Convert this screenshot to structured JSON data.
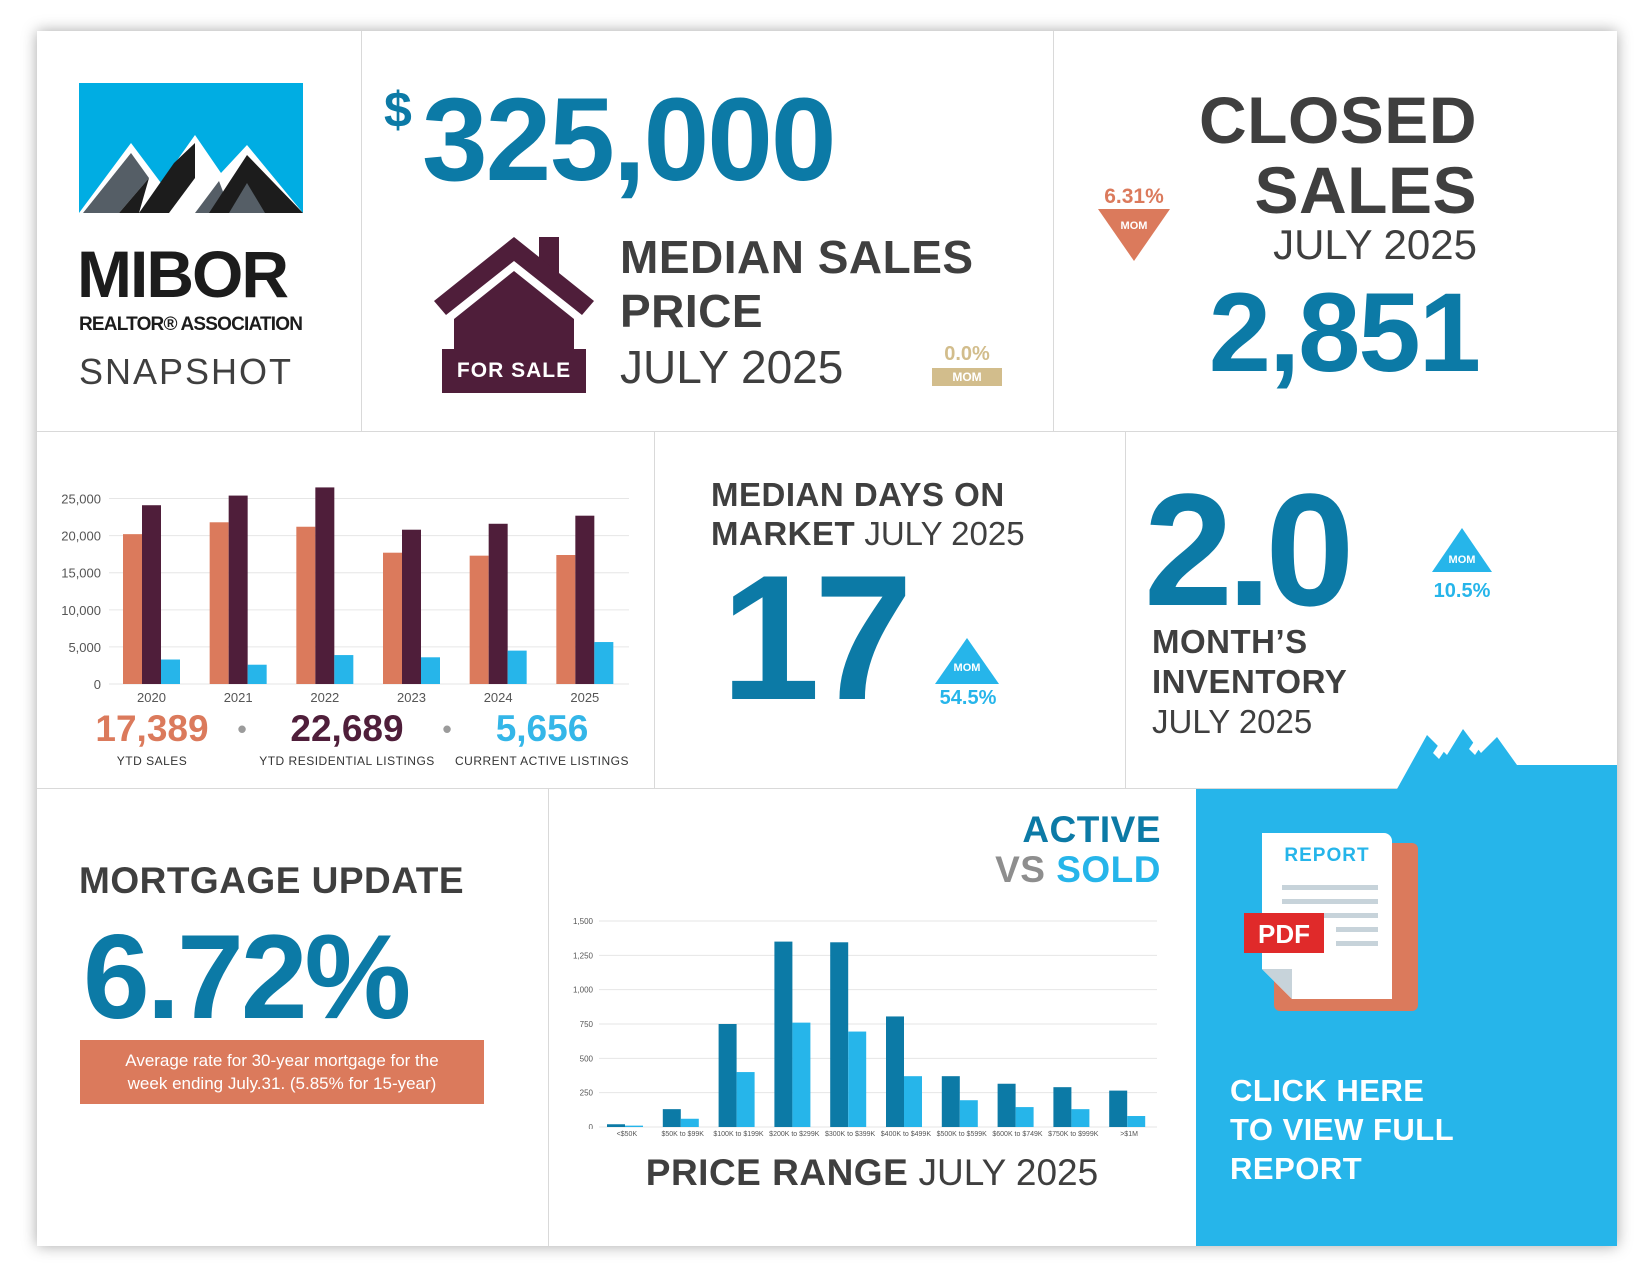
{
  "logo": {
    "brand": "MIBOR",
    "subbrand": "REALTOR® ASSOCIATION",
    "snapshot": "SNAPSHOT"
  },
  "median_price": {
    "dollar_sign": "$",
    "value": "325,000",
    "label_line1": "MEDIAN SALES",
    "label_line2": "PRICE",
    "period": "JULY 2025",
    "change": "0.0%",
    "change_unit": "MOM",
    "sign_text": "FOR SALE"
  },
  "closed_sales": {
    "label_line1": "CLOSED",
    "label_line2": "SALES",
    "period": "JULY 2025",
    "value": "2,851",
    "change": "6.31%",
    "change_unit": "MOM",
    "direction": "down"
  },
  "ytd_chart": {
    "legend": [
      {
        "value": "17,389",
        "label": "YTD SALES",
        "color": "#db7a5c"
      },
      {
        "value": "22,689",
        "label": "YTD RESIDENTIAL LISTINGS",
        "color": "#4f1e3a"
      },
      {
        "value": "5,656",
        "label": "CURRENT ACTIVE LISTINGS",
        "color": "#34b6e8"
      }
    ],
    "separator": "•"
  },
  "days_on_market": {
    "label_bold_1": "MEDIAN DAYS ON",
    "label_bold_2": "MARKET",
    "period": "JULY 2025",
    "value": "17",
    "change": "54.5%",
    "change_unit": "MOM",
    "direction": "up"
  },
  "inventory": {
    "value": "2.0",
    "label_line1": "MONTH’S",
    "label_line2": "INVENTORY",
    "period": "JULY 2025",
    "change": "10.5%",
    "change_unit": "MOM",
    "direction": "up"
  },
  "mortgage": {
    "title": "MORTGAGE UPDATE",
    "rate": "6.72%",
    "note_line1": "Average rate for 30-year mortgage for the",
    "note_line2": "week ending July.31. (5.85% for 15-year)"
  },
  "price_range": {
    "title_active": "ACTIVE",
    "title_vs": "VS",
    "title_sold": "SOLD",
    "footer_bold": "PRICE RANGE",
    "footer_period": "JULY 2025"
  },
  "report": {
    "doc_label": "REPORT",
    "pdf_label": "PDF",
    "cta_line1": "CLICK HERE",
    "cta_line2": "TO VIEW FULL",
    "cta_line3": "REPORT"
  },
  "colors": {
    "blue": "#0c7aa6",
    "light_blue": "#26b5ea",
    "orange": "#db7a5c",
    "plum": "#4f1e3a",
    "tan": "#d2bd8c",
    "gray_text": "#3f3f3f"
  },
  "chart_data": [
    {
      "type": "bar",
      "categories": [
        "2020",
        "2021",
        "2022",
        "2023",
        "2024",
        "2025"
      ],
      "series": [
        {
          "name": "YTD SALES",
          "values": [
            20200,
            21800,
            21200,
            17700,
            17300,
            17389
          ]
        },
        {
          "name": "YTD RESIDENTIAL LISTINGS",
          "values": [
            24100,
            25400,
            26500,
            20800,
            21600,
            22689
          ]
        },
        {
          "name": "CURRENT ACTIVE LISTINGS",
          "values": [
            3300,
            2600,
            3900,
            3600,
            4500,
            5656
          ]
        }
      ],
      "yticks": [
        "0",
        "5,000",
        "10,000",
        "15,000",
        "20,000",
        "25,000"
      ],
      "ylim": [
        0,
        27500
      ],
      "grid": true
    },
    {
      "type": "bar",
      "categories": [
        "<$50K",
        "$50K to $99K",
        "$100K to $199K",
        "$200K to $299K",
        "$300K to $399K",
        "$400K to $499K",
        "$500K to $599K",
        "$600K to $749K",
        "$750K to $999K",
        ">$1M"
      ],
      "series": [
        {
          "name": "ACTIVE",
          "values": [
            20,
            130,
            750,
            1350,
            1345,
            805,
            370,
            315,
            290,
            265
          ]
        },
        {
          "name": "SOLD",
          "values": [
            10,
            60,
            400,
            760,
            695,
            370,
            195,
            145,
            130,
            80
          ]
        }
      ],
      "yticks": [
        "0",
        "250",
        "500",
        "750",
        "1,000",
        "1,250",
        "1,500"
      ],
      "ylim": [
        0,
        1500
      ],
      "grid": true
    }
  ]
}
